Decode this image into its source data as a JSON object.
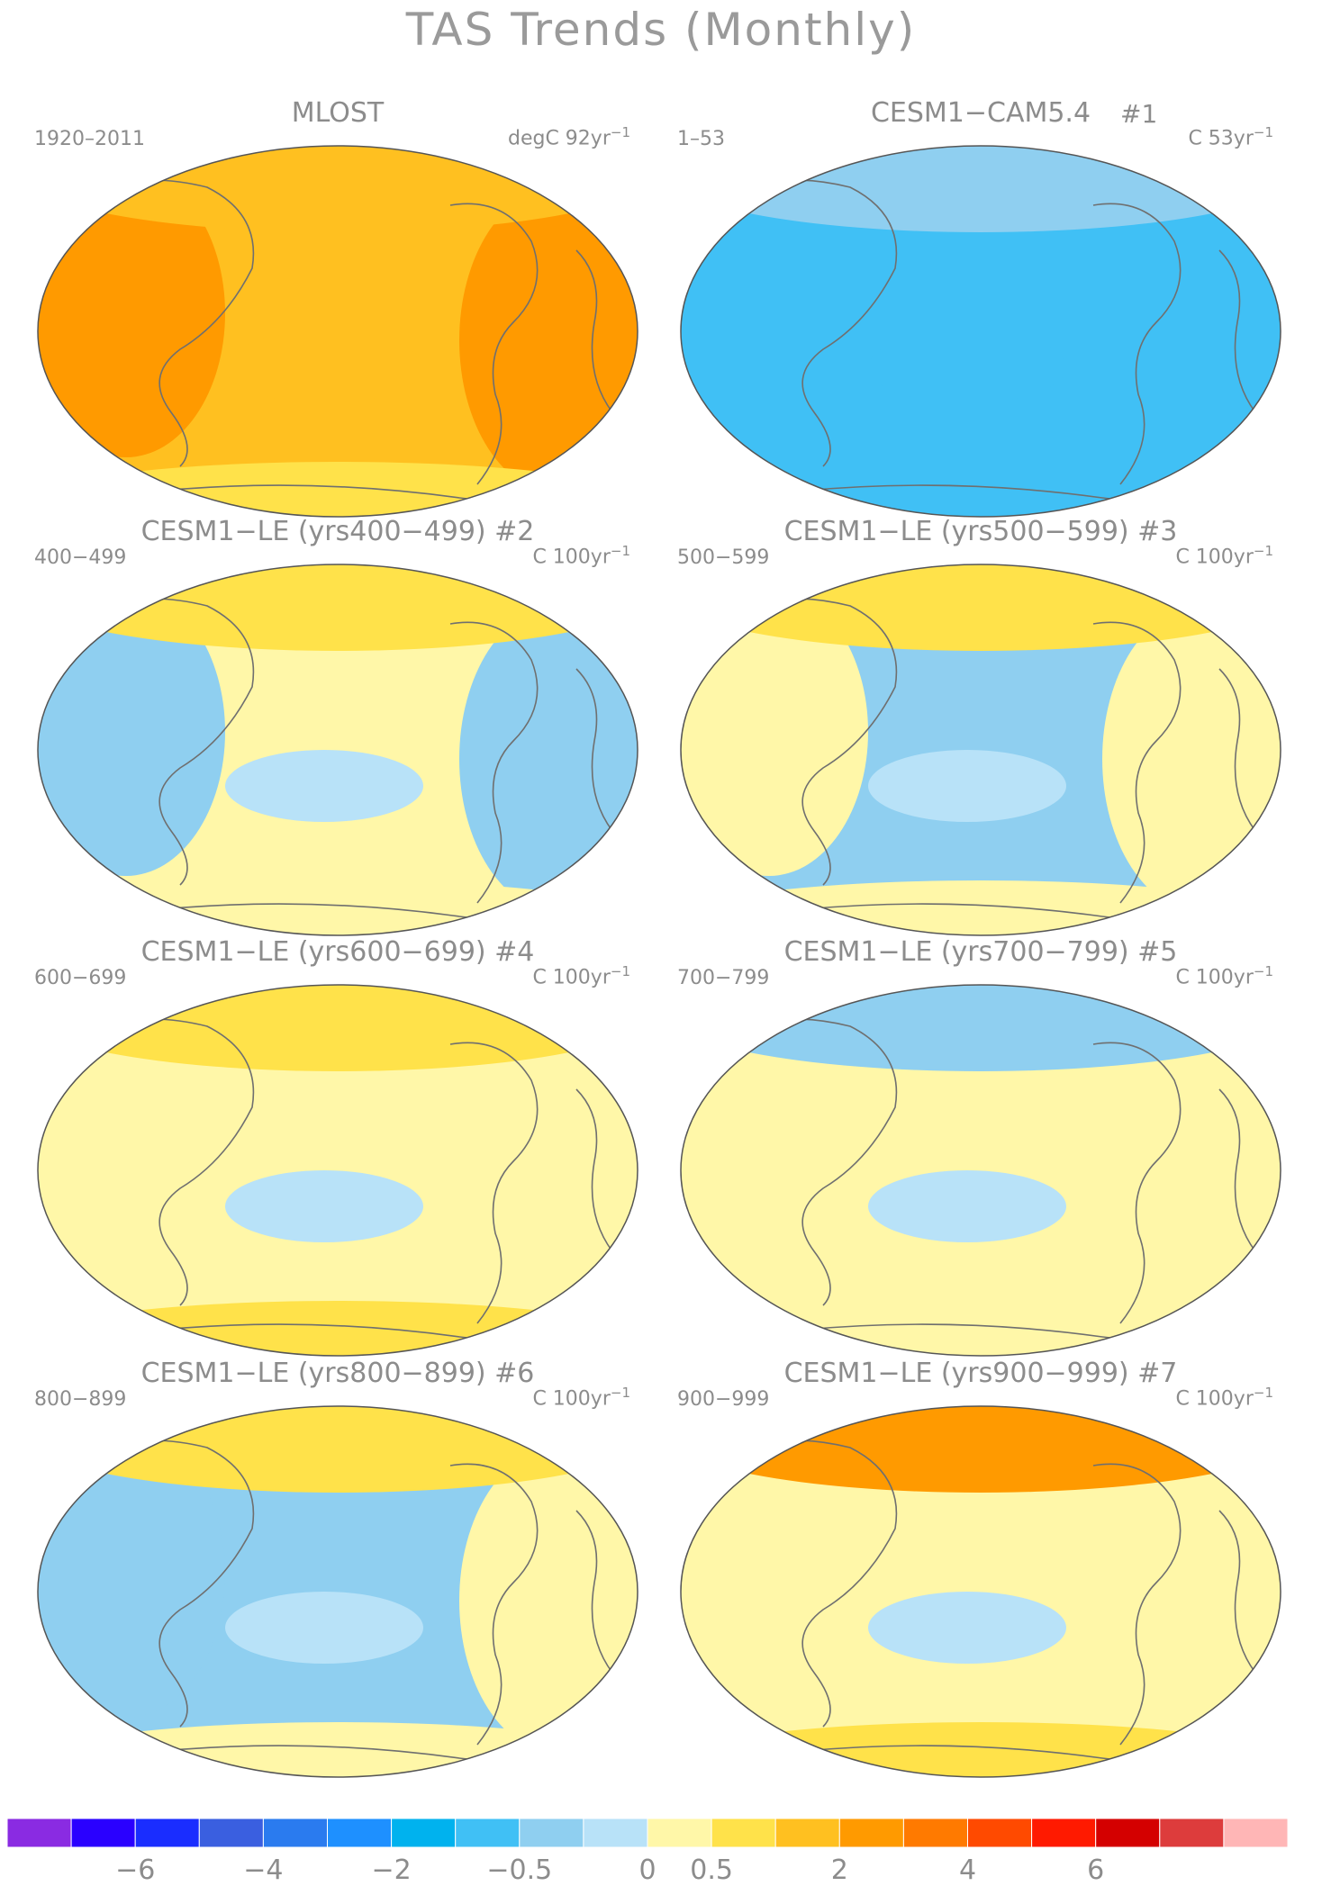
{
  "title": "TAS Trends (Monthly)",
  "panels": [
    {
      "title": "MLOST",
      "tag": "",
      "period": "1920–2011",
      "units": "degC 92yr",
      "exp": "−1",
      "scheme": "warm",
      "fields": {
        "left": "2",
        "center": "1",
        "right": "2",
        "north": "1",
        "south": "0.5"
      }
    },
    {
      "title": "CESM1−CAM5.4",
      "tag": "#1",
      "period": "1–53",
      "units": "C 53yr",
      "exp": "−1",
      "scheme": "cold",
      "fields": {
        "left": "-1",
        "center": "-1",
        "right": "-1",
        "north": "-0.5",
        "south": "-1"
      }
    },
    {
      "title": "CESM1−LE (yrs400−499)",
      "tag": "#2",
      "period": "400−499",
      "units": "C 100yr",
      "exp": "−1",
      "scheme": "mixed",
      "fields": {
        "left": "-0.5",
        "center": "0",
        "right": "-0.5",
        "north": "0.5",
        "south": "0"
      }
    },
    {
      "title": "CESM1−LE (yrs500−599)",
      "tag": "#3",
      "period": "500−599",
      "units": "C 100yr",
      "exp": "−1",
      "scheme": "mixed",
      "fields": {
        "left": "0",
        "center": "-0.5",
        "right": "0",
        "north": "0.5",
        "south": "0"
      }
    },
    {
      "title": "CESM1−LE (yrs600−699)",
      "tag": "#4",
      "period": "600−699",
      "units": "C 100yr",
      "exp": "−1",
      "scheme": "mixed",
      "fields": {
        "left": "0",
        "center": "0",
        "right": "0",
        "north": "0.5",
        "south": "0.5"
      }
    },
    {
      "title": "CESM1−LE (yrs700−799)",
      "tag": "#5",
      "period": "700−799",
      "units": "C 100yr",
      "exp": "−1",
      "scheme": "mixed",
      "fields": {
        "left": "0",
        "center": "0",
        "right": "0",
        "north": "-0.5",
        "south": "0"
      }
    },
    {
      "title": "CESM1−LE (yrs800−899)",
      "tag": "#6",
      "period": "800−899",
      "units": "C 100yr",
      "exp": "−1",
      "scheme": "mixed",
      "fields": {
        "left": "-0.5",
        "center": "-0.5",
        "right": "0",
        "north": "0.5",
        "south": "0"
      }
    },
    {
      "title": "CESM1−LE (yrs900−999)",
      "tag": "#7",
      "period": "900−999",
      "units": "C 100yr",
      "exp": "−1",
      "scheme": "mixed",
      "fields": {
        "left": "0",
        "center": "0",
        "right": "0",
        "north": "2",
        "south": "0.5"
      }
    }
  ],
  "colorbar": {
    "colors": [
      "#8a2be2",
      "#2a00ff",
      "#1a2dff",
      "#3a5fe0",
      "#2a7bef",
      "#1e90ff",
      "#00b2ee",
      "#40c0f5",
      "#8fcff0",
      "#b8e2f8",
      "#fff7a8",
      "#ffe24a",
      "#ffc020",
      "#ff9a00",
      "#ff7a00",
      "#ff4a00",
      "#ff1a00",
      "#d40000",
      "#dd3c3c",
      "#ffb6b6"
    ],
    "tick_labels": [
      "−6",
      "−4",
      "−2",
      "−0.5",
      "0",
      "0.5",
      "2",
      "4",
      "6"
    ]
  }
}
